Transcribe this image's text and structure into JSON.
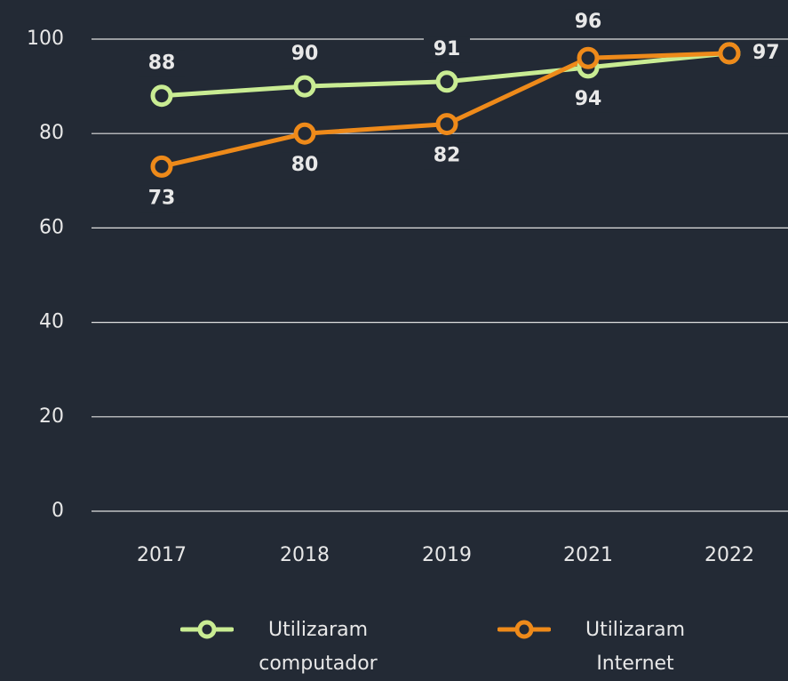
{
  "chart_data": {
    "type": "line",
    "categories": [
      "2017",
      "2018",
      "2019",
      "2021",
      "2022"
    ],
    "series": [
      {
        "name": "Utilizaram computador",
        "color": "#c9ec93",
        "values": [
          88,
          90,
          91,
          94,
          97
        ]
      },
      {
        "name": "Utilizaram Internet",
        "color": "#ee8a1a",
        "values": [
          73,
          80,
          82,
          96,
          97
        ]
      }
    ],
    "ylim": [
      0,
      100
    ],
    "yticks": [
      0,
      20,
      40,
      60,
      80,
      100
    ],
    "grid": true,
    "legend": "bottom"
  }
}
